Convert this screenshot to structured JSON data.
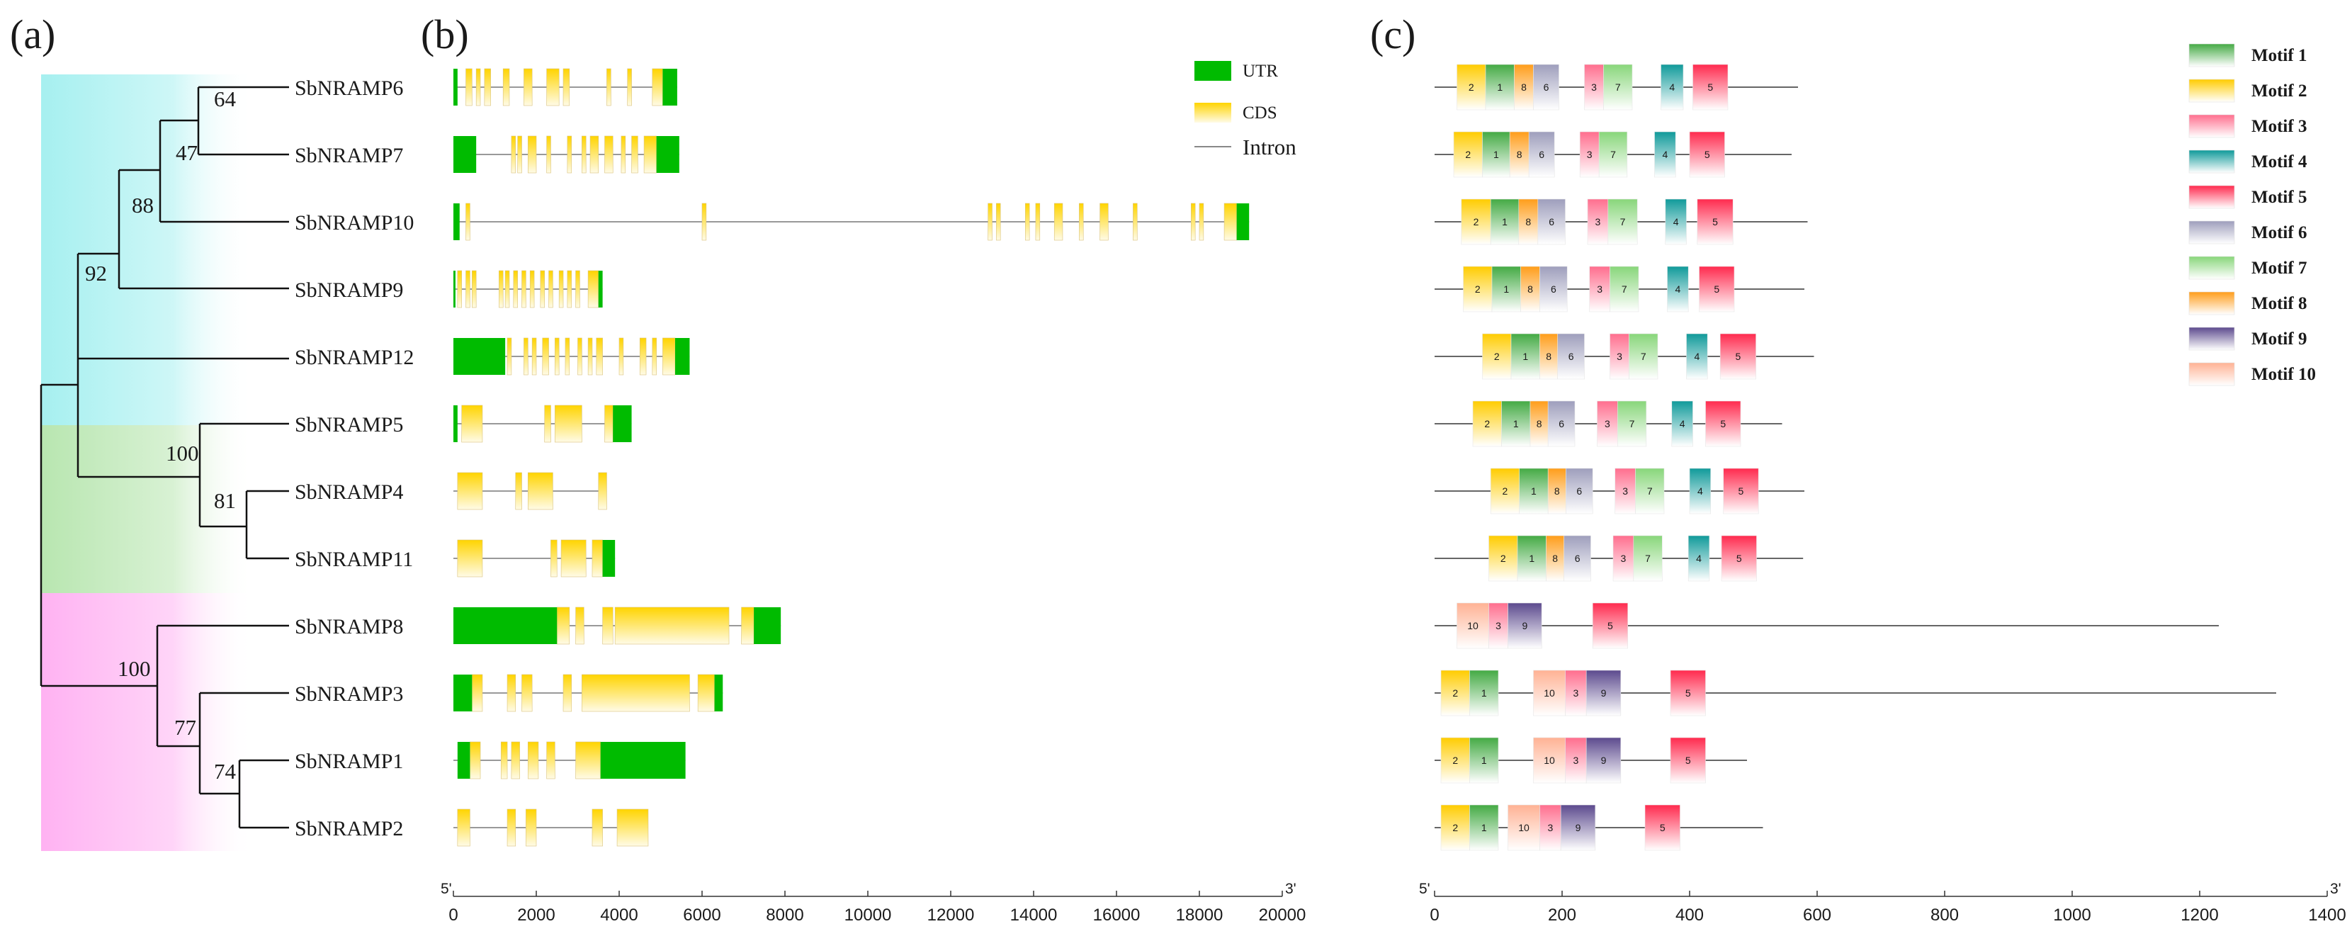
{
  "panels": {
    "a": {
      "label": "(a)"
    },
    "b": {
      "label": "(b)"
    },
    "c": {
      "label": "(c)"
    }
  },
  "genes": [
    "SbNRAMP6",
    "SbNRAMP7",
    "SbNRAMP10",
    "SbNRAMP9",
    "SbNRAMP12",
    "SbNRAMP5",
    "SbNRAMP4",
    "SbNRAMP11",
    "SbNRAMP8",
    "SbNRAMP3",
    "SbNRAMP1",
    "SbNRAMP2"
  ],
  "tree": {
    "bootstrap": [
      "64",
      "47",
      "88",
      "92",
      "100",
      "81",
      "100",
      "77",
      "74"
    ],
    "clade_colors": [
      "#a6f0f0",
      "#b8e6b0",
      "#ffb2f2"
    ]
  },
  "gene_structure": {
    "axis": {
      "start_label": "5'",
      "end_label": "3'",
      "min": 0,
      "max": 20000,
      "ticks": [
        0,
        2000,
        4000,
        6000,
        8000,
        10000,
        12000,
        14000,
        16000,
        18000,
        20000
      ]
    },
    "legend": {
      "utr": "UTR",
      "cds": "CDS",
      "intron": "Intron"
    },
    "colors": {
      "utr": "#00bb00",
      "cds": "#ffd400",
      "intron": "#999999"
    },
    "genes": [
      {
        "length": 5400,
        "utr": [
          [
            0,
            100
          ],
          [
            5050,
            5400
          ]
        ],
        "cds": [
          [
            300,
            450
          ],
          [
            550,
            650
          ],
          [
            750,
            900
          ],
          [
            1200,
            1350
          ],
          [
            1700,
            1900
          ],
          [
            2250,
            2550
          ],
          [
            2650,
            2800
          ],
          [
            3700,
            3800
          ],
          [
            4200,
            4300
          ],
          [
            4800,
            5050
          ]
        ]
      },
      {
        "length": 5450,
        "utr": [
          [
            0,
            550
          ],
          [
            4900,
            5450
          ]
        ],
        "cds": [
          [
            1400,
            1500
          ],
          [
            1550,
            1650
          ],
          [
            1800,
            2000
          ],
          [
            2250,
            2350
          ],
          [
            2750,
            2850
          ],
          [
            3100,
            3200
          ],
          [
            3300,
            3500
          ],
          [
            3650,
            3850
          ],
          [
            4050,
            4150
          ],
          [
            4300,
            4450
          ],
          [
            4600,
            4900
          ]
        ]
      },
      {
        "length": 19200,
        "utr": [
          [
            0,
            150
          ],
          [
            18900,
            19200
          ]
        ],
        "cds": [
          [
            300,
            400
          ],
          [
            6000,
            6100
          ],
          [
            12900,
            13000
          ],
          [
            13100,
            13200
          ],
          [
            13800,
            13900
          ],
          [
            14050,
            14150
          ],
          [
            14500,
            14700
          ],
          [
            15100,
            15200
          ],
          [
            15600,
            15800
          ],
          [
            16400,
            16500
          ],
          [
            17800,
            17900
          ],
          [
            18000,
            18100
          ],
          [
            18600,
            18900
          ]
        ]
      },
      {
        "length": 3600,
        "utr": [
          [
            0,
            50
          ],
          [
            3500,
            3600
          ]
        ],
        "cds": [
          [
            100,
            200
          ],
          [
            300,
            400
          ],
          [
            450,
            550
          ],
          [
            1100,
            1200
          ],
          [
            1250,
            1350
          ],
          [
            1450,
            1550
          ],
          [
            1650,
            1750
          ],
          [
            1850,
            1950
          ],
          [
            2100,
            2200
          ],
          [
            2300,
            2400
          ],
          [
            2550,
            2650
          ],
          [
            2750,
            2850
          ],
          [
            2950,
            3050
          ],
          [
            3250,
            3500
          ]
        ]
      },
      {
        "length": 5700,
        "utr": [
          [
            0,
            1250
          ],
          [
            5350,
            5700
          ]
        ],
        "cds": [
          [
            1300,
            1400
          ],
          [
            1700,
            1800
          ],
          [
            1900,
            2000
          ],
          [
            2150,
            2300
          ],
          [
            2450,
            2550
          ],
          [
            2700,
            2800
          ],
          [
            3000,
            3100
          ],
          [
            3250,
            3350
          ],
          [
            3450,
            3600
          ],
          [
            4000,
            4100
          ],
          [
            4500,
            4650
          ],
          [
            4800,
            4900
          ],
          [
            5050,
            5350
          ]
        ]
      },
      {
        "length": 4300,
        "utr": [
          [
            0,
            100
          ],
          [
            3850,
            4300
          ]
        ],
        "cds": [
          [
            200,
            700
          ],
          [
            2200,
            2350
          ],
          [
            2450,
            3100
          ],
          [
            3650,
            3850
          ]
        ]
      },
      {
        "length": 3700,
        "utr": [],
        "cds": [
          [
            100,
            700
          ],
          [
            1500,
            1650
          ],
          [
            1800,
            2400
          ],
          [
            3500,
            3700
          ]
        ]
      },
      {
        "length": 3900,
        "utr": [
          [
            3600,
            3900
          ]
        ],
        "cds": [
          [
            100,
            700
          ],
          [
            2350,
            2500
          ],
          [
            2600,
            3200
          ],
          [
            3350,
            3600
          ]
        ]
      },
      {
        "length": 7900,
        "utr": [
          [
            0,
            2500
          ],
          [
            7250,
            7900
          ]
        ],
        "cds": [
          [
            2500,
            2800
          ],
          [
            2950,
            3150
          ],
          [
            3600,
            3850
          ],
          [
            3900,
            6650
          ],
          [
            6950,
            7250
          ]
        ]
      },
      {
        "length": 6500,
        "utr": [
          [
            0,
            450
          ],
          [
            6300,
            6500
          ]
        ],
        "cds": [
          [
            450,
            700
          ],
          [
            1300,
            1500
          ],
          [
            1650,
            1900
          ],
          [
            2650,
            2850
          ],
          [
            3100,
            5700
          ],
          [
            5900,
            6300
          ]
        ]
      },
      {
        "length": 5600,
        "utr": [
          [
            100,
            400
          ],
          [
            3550,
            5600
          ]
        ],
        "cds": [
          [
            400,
            650
          ],
          [
            1150,
            1300
          ],
          [
            1400,
            1600
          ],
          [
            1800,
            2050
          ],
          [
            2250,
            2450
          ],
          [
            2950,
            3550
          ]
        ]
      },
      {
        "length": 4700,
        "utr": [],
        "cds": [
          [
            100,
            400
          ],
          [
            1300,
            1500
          ],
          [
            1750,
            2000
          ],
          [
            3350,
            3600
          ],
          [
            3950,
            4700
          ]
        ]
      }
    ]
  },
  "motif_panel": {
    "axis": {
      "start_label": "5'",
      "end_label": "3'",
      "min": 0,
      "max": 1400,
      "ticks": [
        0,
        200,
        400,
        600,
        800,
        1000,
        1200,
        1400
      ]
    },
    "motif_names": [
      "Motif 1",
      "Motif 2",
      "Motif 3",
      "Motif 4",
      "Motif 5",
      "Motif 6",
      "Motif 7",
      "Motif 8",
      "Motif 9",
      "Motif 10"
    ],
    "motif_colors": [
      "#44aa44",
      "#ffcc00",
      "#ff6e8e",
      "#109a9a",
      "#ff2a4e",
      "#9e9ebc",
      "#88d67a",
      "#ff9d1a",
      "#5c4a8e",
      "#ffb294"
    ],
    "proteins": [
      {
        "length": 570,
        "motifs": [
          [
            2,
            35,
            80
          ],
          [
            1,
            80,
            125
          ],
          [
            8,
            125,
            155
          ],
          [
            6,
            155,
            195
          ],
          [
            3,
            235,
            265
          ],
          [
            7,
            265,
            310
          ],
          [
            4,
            355,
            390
          ],
          [
            5,
            405,
            460
          ]
        ]
      },
      {
        "length": 560,
        "motifs": [
          [
            2,
            30,
            75
          ],
          [
            1,
            75,
            118
          ],
          [
            8,
            118,
            148
          ],
          [
            6,
            148,
            188
          ],
          [
            3,
            228,
            258
          ],
          [
            7,
            258,
            302
          ],
          [
            4,
            345,
            378
          ],
          [
            5,
            400,
            455
          ]
        ]
      },
      {
        "length": 585,
        "motifs": [
          [
            2,
            42,
            88
          ],
          [
            1,
            88,
            132
          ],
          [
            8,
            132,
            162
          ],
          [
            6,
            162,
            205
          ],
          [
            3,
            240,
            272
          ],
          [
            7,
            272,
            318
          ],
          [
            4,
            362,
            395
          ],
          [
            5,
            412,
            468
          ]
        ]
      },
      {
        "length": 580,
        "motifs": [
          [
            2,
            45,
            90
          ],
          [
            1,
            90,
            135
          ],
          [
            8,
            135,
            165
          ],
          [
            6,
            165,
            208
          ],
          [
            3,
            243,
            275
          ],
          [
            7,
            275,
            320
          ],
          [
            4,
            365,
            398
          ],
          [
            5,
            415,
            470
          ]
        ]
      },
      {
        "length": 595,
        "motifs": [
          [
            2,
            75,
            120
          ],
          [
            1,
            120,
            165
          ],
          [
            8,
            165,
            193
          ],
          [
            6,
            193,
            235
          ],
          [
            3,
            275,
            305
          ],
          [
            7,
            305,
            350
          ],
          [
            4,
            395,
            428
          ],
          [
            5,
            448,
            504
          ]
        ]
      },
      {
        "length": 545,
        "motifs": [
          [
            2,
            60,
            105
          ],
          [
            1,
            105,
            150
          ],
          [
            8,
            150,
            178
          ],
          [
            6,
            178,
            220
          ],
          [
            3,
            255,
            287
          ],
          [
            7,
            287,
            332
          ],
          [
            4,
            372,
            405
          ],
          [
            5,
            425,
            480
          ]
        ]
      },
      {
        "length": 580,
        "motifs": [
          [
            2,
            88,
            133
          ],
          [
            1,
            133,
            178
          ],
          [
            8,
            178,
            206
          ],
          [
            6,
            206,
            248
          ],
          [
            3,
            283,
            315
          ],
          [
            7,
            315,
            360
          ],
          [
            4,
            400,
            433
          ],
          [
            5,
            453,
            508
          ]
        ]
      },
      {
        "length": 578,
        "motifs": [
          [
            2,
            85,
            130
          ],
          [
            1,
            130,
            175
          ],
          [
            8,
            175,
            203
          ],
          [
            6,
            203,
            245
          ],
          [
            3,
            280,
            312
          ],
          [
            7,
            312,
            357
          ],
          [
            4,
            398,
            431
          ],
          [
            5,
            450,
            505
          ]
        ]
      },
      {
        "length": 1230,
        "motifs": [
          [
            10,
            35,
            85
          ],
          [
            3,
            85,
            115
          ],
          [
            9,
            115,
            168
          ],
          [
            5,
            248,
            303
          ]
        ]
      },
      {
        "length": 1320,
        "motifs": [
          [
            2,
            10,
            55
          ],
          [
            1,
            55,
            100
          ],
          [
            10,
            155,
            205
          ],
          [
            3,
            205,
            238
          ],
          [
            9,
            238,
            292
          ],
          [
            5,
            370,
            425
          ]
        ]
      },
      {
        "length": 490,
        "motifs": [
          [
            2,
            10,
            55
          ],
          [
            1,
            55,
            100
          ],
          [
            10,
            155,
            205
          ],
          [
            3,
            205,
            238
          ],
          [
            9,
            238,
            292
          ],
          [
            5,
            370,
            425
          ]
        ]
      },
      {
        "length": 515,
        "motifs": [
          [
            2,
            10,
            55
          ],
          [
            1,
            55,
            100
          ],
          [
            10,
            115,
            165
          ],
          [
            3,
            165,
            198
          ],
          [
            9,
            198,
            252
          ],
          [
            5,
            330,
            385
          ]
        ]
      }
    ]
  }
}
